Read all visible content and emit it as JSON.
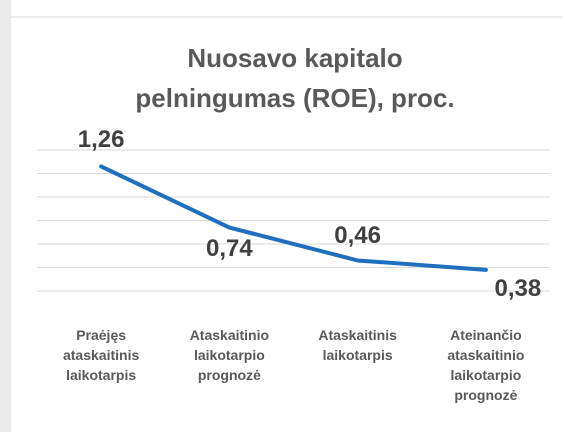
{
  "chart_data": {
    "type": "line",
    "title": "Nuosavo kapitalo pelningumas (ROE), proc.",
    "categories": [
      "Praėjęs ataskaitinis laikotarpis",
      "Ataskaitinio laikotarpio prognozė",
      "Ataskaitinis laikotarpis",
      "Ateinančio ataskaitinio laikotarpio prognozė"
    ],
    "values": [
      1.26,
      0.74,
      0.46,
      0.38
    ],
    "value_labels": [
      "1,26",
      "0,74",
      "0,46",
      "0,38"
    ],
    "color": "#1f6fbf",
    "ylim": [
      0.2,
      1.4
    ],
    "yticks": [
      0.2,
      0.4,
      0.6,
      0.8,
      1.0,
      1.2,
      1.4
    ],
    "grid": true
  }
}
